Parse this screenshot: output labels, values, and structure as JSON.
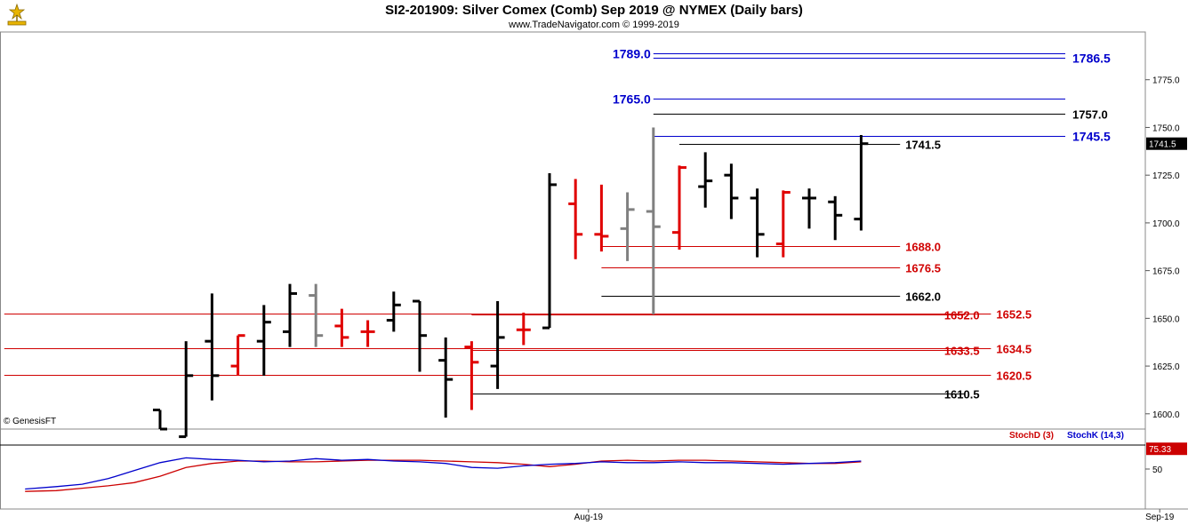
{
  "header": {
    "title": "SI2-201909:  Silver Comex (Comb) Sep 2019 @ NYMEX  (Daily bars)",
    "subtitle": "www.TradeNavigator.com © 1999-2019"
  },
  "copyright": "© GenesisFT",
  "colors": {
    "up": "#000000",
    "down": "#e00000",
    "neutral": "#808080",
    "blue_level": "#0000cc",
    "red_level": "#d00000",
    "black_level": "#000000",
    "stoch_d": "#cc0000",
    "stoch_k": "#0000cc",
    "last_price_box": "#000000"
  },
  "chart_data": [
    {
      "type": "bar",
      "style": "ohlc",
      "title": "SI2-201909:  Silver Comex (Comb) Sep 2019 @ NYMEX  (Daily bars)",
      "ylim": [
        1592,
        1800
      ],
      "y_ticks": [
        "1600.0",
        "1625.0",
        "1650.0",
        "1675.0",
        "1700.0",
        "1725.0",
        "1750.0",
        "1775.0"
      ],
      "x_labels": [
        {
          "label": "Aug-19",
          "index": 16.5
        },
        {
          "label": "Sep-19",
          "index": 38.5
        }
      ],
      "last_price": "1741.5",
      "bars": [
        {
          "o": 1602,
          "h": 1602,
          "l": 1592,
          "c": 1592,
          "col": "up"
        },
        {
          "o": 1588,
          "h": 1638,
          "l": 1588,
          "c": 1620,
          "col": "up"
        },
        {
          "o": 1638,
          "h": 1663,
          "l": 1607,
          "c": 1620,
          "col": "up"
        },
        {
          "o": 1625,
          "h": 1641,
          "l": 1620,
          "c": 1641,
          "col": "down"
        },
        {
          "o": 1638,
          "h": 1657,
          "l": 1620,
          "c": 1648,
          "col": "up"
        },
        {
          "o": 1643,
          "h": 1668,
          "l": 1635,
          "c": 1663,
          "col": "up"
        },
        {
          "o": 1662,
          "h": 1668,
          "l": 1635,
          "c": 1641,
          "col": "neutral"
        },
        {
          "o": 1646,
          "h": 1655,
          "l": 1635,
          "c": 1640,
          "col": "down"
        },
        {
          "o": 1643,
          "h": 1649,
          "l": 1635,
          "c": 1643,
          "col": "down"
        },
        {
          "o": 1649,
          "h": 1664,
          "l": 1643,
          "c": 1657,
          "col": "up"
        },
        {
          "o": 1659,
          "h": 1659,
          "l": 1622,
          "c": 1641,
          "col": "up"
        },
        {
          "o": 1628,
          "h": 1640,
          "l": 1598,
          "c": 1618,
          "col": "up"
        },
        {
          "o": 1635,
          "h": 1638,
          "l": 1602,
          "c": 1627,
          "col": "down"
        },
        {
          "o": 1625,
          "h": 1659,
          "l": 1613,
          "c": 1640,
          "col": "up"
        },
        {
          "o": 1644,
          "h": 1653,
          "l": 1636,
          "c": 1644,
          "col": "down"
        },
        {
          "o": 1645,
          "h": 1726,
          "l": 1645,
          "c": 1720,
          "col": "up"
        },
        {
          "o": 1710,
          "h": 1723,
          "l": 1681,
          "c": 1694,
          "col": "down"
        },
        {
          "o": 1694,
          "h": 1720,
          "l": 1685,
          "c": 1693,
          "col": "down"
        },
        {
          "o": 1697,
          "h": 1716,
          "l": 1680,
          "c": 1707,
          "col": "neutral"
        },
        {
          "o": 1706,
          "h": 1750,
          "l": 1652,
          "c": 1698,
          "col": "neutral"
        },
        {
          "o": 1695,
          "h": 1730,
          "l": 1686,
          "c": 1729,
          "col": "down"
        },
        {
          "o": 1719,
          "h": 1737,
          "l": 1708,
          "c": 1722,
          "col": "up"
        },
        {
          "o": 1725,
          "h": 1731,
          "l": 1702,
          "c": 1713,
          "col": "up"
        },
        {
          "o": 1713,
          "h": 1718,
          "l": 1682,
          "c": 1694,
          "col": "up"
        },
        {
          "o": 1689,
          "h": 1717,
          "l": 1682,
          "c": 1716,
          "col": "down"
        },
        {
          "o": 1713,
          "h": 1718,
          "l": 1697,
          "c": 1713,
          "col": "up"
        },
        {
          "o": 1711,
          "h": 1714,
          "l": 1691,
          "c": 1704,
          "col": "up"
        },
        {
          "o": 1702,
          "h": 1746,
          "l": 1696,
          "c": 1741.5,
          "col": "up"
        }
      ],
      "levels": [
        {
          "label": "1789.0",
          "value": 1789.0,
          "color": "blue",
          "label_side": "left",
          "x_from_index": 19,
          "x_to_index": 39
        },
        {
          "label": "1786.5",
          "value": 1786.5,
          "color": "blue",
          "label_side": "right",
          "x_from_index": 19,
          "x_to_index": 39
        },
        {
          "label": "1765.0",
          "value": 1765.0,
          "color": "blue",
          "label_side": "left",
          "x_from_index": 19,
          "x_to_index": 39
        },
        {
          "label": "1757.0",
          "value": 1757.0,
          "color": "black",
          "label_side": "right",
          "x_from_index": 19,
          "x_to_index": 39
        },
        {
          "label": "1745.5",
          "value": 1745.5,
          "color": "blue",
          "label_side": "right",
          "x_from_index": 19,
          "x_to_index": 39
        },
        {
          "label": "1741.5",
          "value": 1741.5,
          "color": "black",
          "label_side": "mid",
          "x_from_index": 20,
          "x_to_index": 28.5
        },
        {
          "label": "1688.0",
          "value": 1688.0,
          "color": "red",
          "label_side": "mid",
          "x_from_index": 17,
          "x_to_index": 28.5
        },
        {
          "label": "1676.5",
          "value": 1676.5,
          "color": "red",
          "label_side": "mid",
          "x_from_index": 17,
          "x_to_index": 28.5
        },
        {
          "label": "1662.0",
          "value": 1662.0,
          "color": "black",
          "label_side": "mid",
          "x_from_index": 17,
          "x_to_index": 28.5
        },
        {
          "label": "1652.0",
          "value": 1652.0,
          "color": "red",
          "label_side": "inner",
          "x_from_index": 12,
          "x_to_index": 31
        },
        {
          "label": "1652.5",
          "value": 1652.5,
          "color": "red",
          "label_side": "outer",
          "x_from_index": -6,
          "x_to_index": 32
        },
        {
          "label": "1633.5",
          "value": 1633.5,
          "color": "red",
          "label_side": "inner",
          "x_from_index": 12,
          "x_to_index": 31
        },
        {
          "label": "1634.5",
          "value": 1634.5,
          "color": "red",
          "label_side": "outer",
          "x_from_index": -6,
          "x_to_index": 32
        },
        {
          "label": "1620.5",
          "value": 1620.5,
          "color": "red",
          "label_side": "outer",
          "x_from_index": -6,
          "x_to_index": 32
        },
        {
          "label": "1610.5",
          "value": 1610.5,
          "color": "black",
          "label_side": "inner",
          "x_from_index": 12,
          "x_to_index": 31
        }
      ]
    },
    {
      "type": "line",
      "ylim": [
        0,
        100
      ],
      "y_ticks": [
        "50"
      ],
      "reference_line": 80,
      "current_value": "75.33",
      "legend": [
        "StochD (3)",
        "StochK (14,3)"
      ],
      "series": [
        {
          "name": "StochD (3)",
          "color_key": "stoch_d",
          "x": [
            -5.2,
            -4,
            -3,
            -2,
            -1,
            0,
            1,
            2,
            3,
            4,
            5,
            6,
            7,
            8,
            9,
            10,
            11,
            12,
            13,
            14,
            15,
            16,
            17,
            18,
            19,
            20,
            21,
            22,
            23,
            24,
            25,
            26,
            27
          ],
          "values": [
            22,
            23,
            26,
            29,
            33,
            41,
            52,
            57,
            60,
            60,
            59,
            59,
            60,
            61,
            61,
            61,
            60,
            59,
            58,
            56,
            53,
            56,
            60,
            61,
            60,
            61,
            61,
            60,
            59,
            58,
            57,
            57,
            59
          ]
        },
        {
          "name": "StochK (14,3)",
          "color_key": "stoch_k",
          "x": [
            -5.2,
            -4,
            -3,
            -2,
            -1,
            0,
            1,
            2,
            3,
            4,
            5,
            6,
            7,
            8,
            9,
            10,
            11,
            12,
            13,
            14,
            15,
            16,
            17,
            18,
            19,
            20,
            21,
            22,
            23,
            24,
            25,
            26,
            27
          ],
          "values": [
            25,
            28,
            31,
            38,
            48,
            58,
            64,
            62,
            61,
            59,
            60,
            63,
            61,
            62,
            60,
            59,
            57,
            52,
            51,
            54,
            56,
            57,
            59,
            58,
            58,
            59,
            58,
            58,
            57,
            56,
            57,
            58,
            60
          ]
        }
      ]
    }
  ]
}
